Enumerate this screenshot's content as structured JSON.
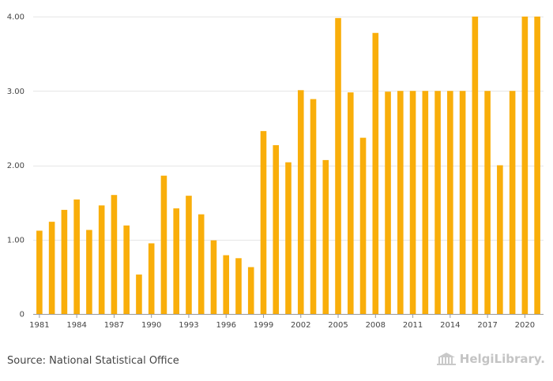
{
  "chart_data": {
    "type": "bar",
    "categories": [
      "1981",
      "1982",
      "1983",
      "1984",
      "1985",
      "1986",
      "1987",
      "1988",
      "1989",
      "1990",
      "1991",
      "1992",
      "1993",
      "1994",
      "1995",
      "1996",
      "1997",
      "1998",
      "1999",
      "2000",
      "2001",
      "2002",
      "2003",
      "2004",
      "2005",
      "2006",
      "2007",
      "2008",
      "2009",
      "2010",
      "2011",
      "2012",
      "2013",
      "2014",
      "2015",
      "2016",
      "2017",
      "2018",
      "2019",
      "2020",
      "2021"
    ],
    "x_tick_labels": [
      "1981",
      "1984",
      "1987",
      "1990",
      "1993",
      "1996",
      "1999",
      "2002",
      "2005",
      "2008",
      "2011",
      "2014",
      "2017",
      "2020"
    ],
    "values": [
      1.12,
      1.24,
      1.4,
      1.54,
      1.13,
      1.46,
      1.6,
      1.19,
      0.53,
      0.95,
      1.86,
      1.42,
      1.59,
      1.34,
      0.99,
      0.79,
      0.75,
      0.63,
      2.46,
      2.27,
      2.04,
      3.01,
      2.89,
      2.07,
      3.98,
      2.98,
      2.37,
      3.78,
      2.99,
      3.0,
      3.0,
      3.0,
      3.0,
      3.0,
      3.0,
      4.0,
      3.0,
      2.0,
      3.0,
      4.0,
      4.0
    ],
    "y_tick_labels": [
      "0",
      "1.00",
      "2.00",
      "3.00",
      "4.00"
    ],
    "y_ticks": [
      0,
      1,
      2,
      3,
      4
    ],
    "ylim": [
      0,
      4
    ],
    "title": "",
    "xlabel": "",
    "ylabel": "",
    "grid": true,
    "colors": {
      "bar": "#F9AE0A",
      "grid": "#E6E6E6",
      "axis": "#999999"
    }
  },
  "footer": {
    "source": "Source: National Statistical Office",
    "logo_icon": "library-building-icon",
    "logo_text": "HelgiLibrary."
  }
}
